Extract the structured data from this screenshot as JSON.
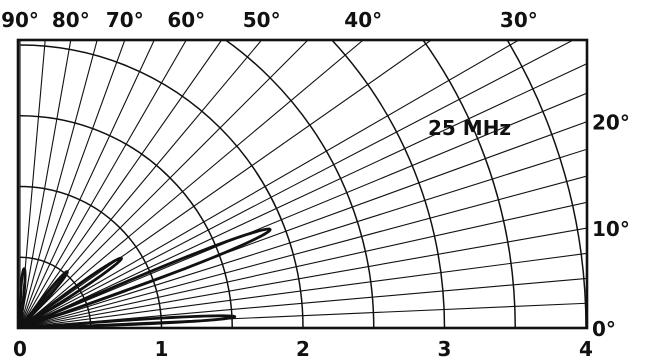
{
  "chart_data": {
    "type": "polar-elevation-pattern",
    "annotation": "25 MHz",
    "radial_axis": {
      "ticks": [
        "0",
        "1",
        "2",
        "3",
        "4"
      ],
      "range": [
        0,
        4
      ]
    },
    "elevation_ticks_top": [
      {
        "angle": 90,
        "label": "90°"
      },
      {
        "angle": 80,
        "label": "80°"
      },
      {
        "angle": 70,
        "label": "70°"
      },
      {
        "angle": 60,
        "label": "60°"
      },
      {
        "angle": 50,
        "label": "50°"
      },
      {
        "angle": 40,
        "label": "40°"
      },
      {
        "angle": 30,
        "label": "30°"
      }
    ],
    "elevation_ticks_right": [
      {
        "angle": 20,
        "label": "20°"
      },
      {
        "angle": 10,
        "label": "10°"
      },
      {
        "angle": 0,
        "label": "0°"
      }
    ],
    "grid_rays_deg": [
      2.5,
      5,
      7.5,
      10,
      12.5,
      15,
      17.5,
      20,
      22.5,
      25,
      27.5,
      30,
      35,
      40,
      45,
      50,
      55,
      60,
      65,
      70,
      75,
      80,
      85,
      90
    ],
    "grid_arcs_r": [
      0.5,
      1,
      1.5,
      2,
      2.5,
      3,
      3.5,
      4
    ],
    "lobes": [
      {
        "name": "lobe-1",
        "peak_angle_deg": 3,
        "peak_r": 1.52,
        "half_width_deg": 1.4
      },
      {
        "name": "lobe-2",
        "peak_angle_deg": 21.5,
        "peak_r": 1.9,
        "half_width_deg": 2.3
      },
      {
        "name": "lobe-3",
        "peak_angle_deg": 34.5,
        "peak_r": 0.87,
        "half_width_deg": 2.7
      },
      {
        "name": "lobe-4",
        "peak_angle_deg": 50,
        "peak_r": 0.52,
        "half_width_deg": 3.2
      },
      {
        "name": "lobe-5",
        "peak_angle_deg": 86,
        "peak_r": 0.42,
        "half_width_deg": 3.5
      }
    ]
  }
}
